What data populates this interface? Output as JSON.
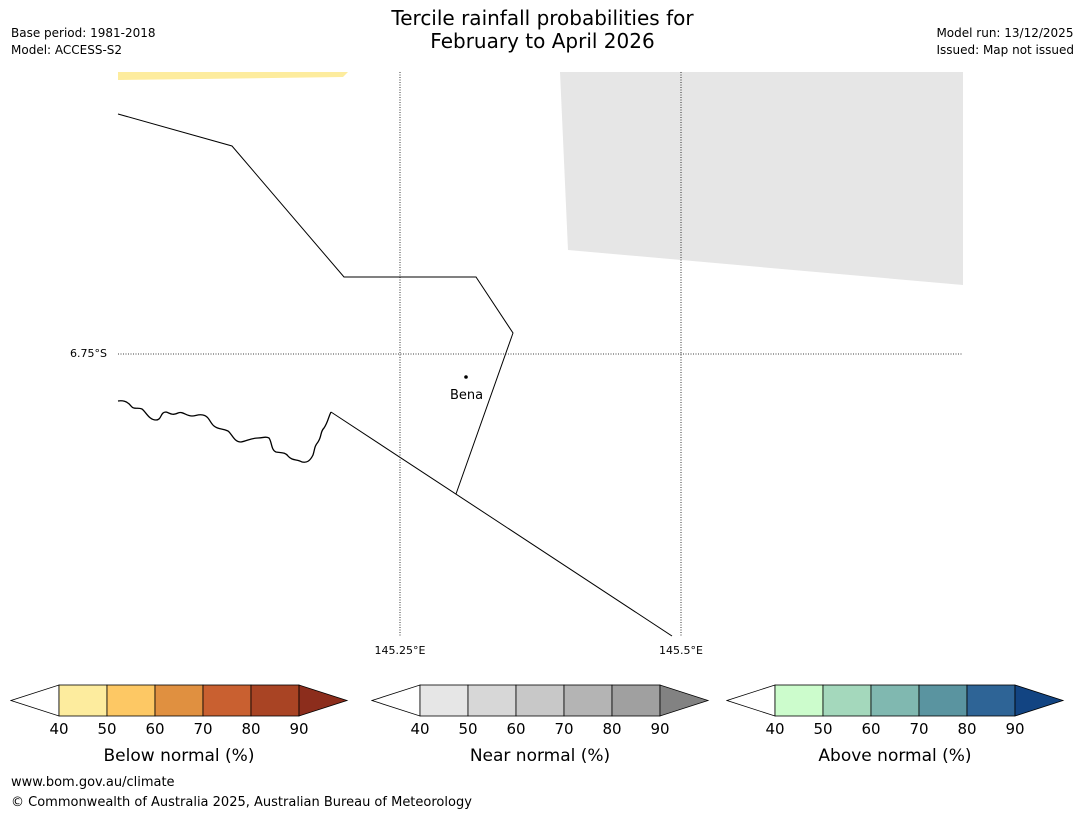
{
  "title_line1": "Tercile rainfall probabilities for",
  "title_line2": "February to April 2026",
  "meta_left": {
    "base_period": "Base period: 1981-2018",
    "model": "Model: ACCESS-S2"
  },
  "meta_right": {
    "model_run": "Model run: 13/12/2025",
    "issued": "Issued: Map not issued"
  },
  "map": {
    "lat_label": "6.75°S",
    "lon_labels": [
      "145.25°E",
      "145.5°E"
    ],
    "place": "Bena"
  },
  "colorbars": [
    {
      "name": "below",
      "title": "Below normal (%)",
      "ticks": [
        "40",
        "50",
        "60",
        "70",
        "80",
        "90"
      ],
      "colors": [
        "#ffffff",
        "#fdec9e",
        "#fdc864",
        "#e09040",
        "#c96030",
        "#a94424",
        "#8c2d1c"
      ]
    },
    {
      "name": "near",
      "title": "Near normal (%)",
      "ticks": [
        "40",
        "50",
        "60",
        "70",
        "80",
        "90"
      ],
      "colors": [
        "#ffffff",
        "#e6e6e6",
        "#d7d7d7",
        "#c8c8c8",
        "#b4b4b4",
        "#a0a0a0",
        "#828282"
      ]
    },
    {
      "name": "above",
      "title": "Above normal (%)",
      "ticks": [
        "40",
        "50",
        "60",
        "70",
        "80",
        "90"
      ],
      "colors": [
        "#ffffff",
        "#ccfccc",
        "#a4d8bc",
        "#80b8b0",
        "#5a94a0",
        "#2e6496",
        "#124482"
      ]
    }
  ],
  "footer": {
    "url": "www.bom.gov.au/climate",
    "copyright": "© Commonwealth of Australia 2025, Australian Bureau of Meteorology"
  }
}
